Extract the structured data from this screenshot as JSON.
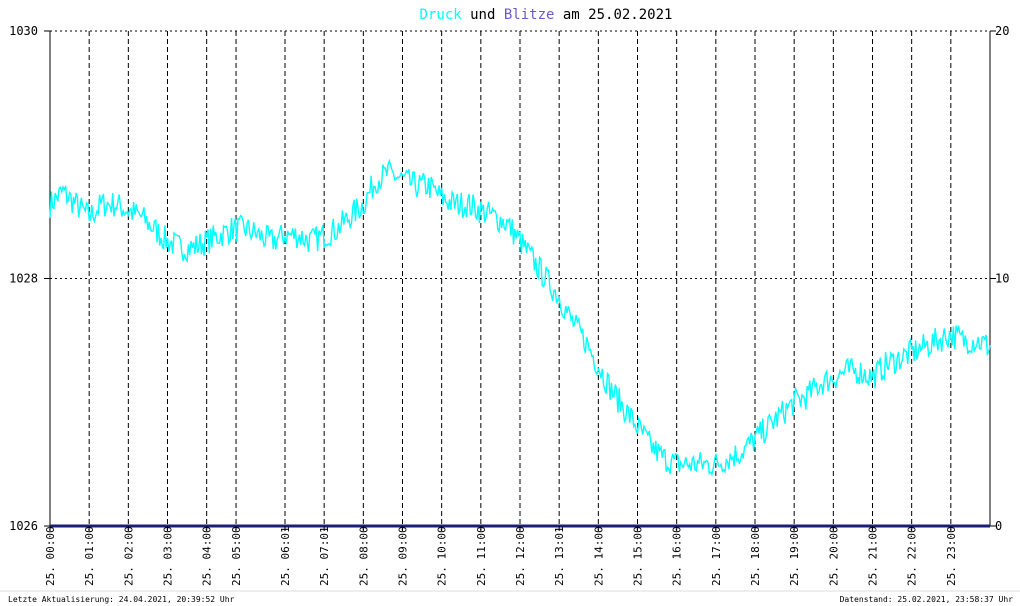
{
  "title": {
    "word1": "Druck",
    "word2": " und ",
    "word3": "Blitze",
    "word4": " am 25.02.2021"
  },
  "footer": {
    "left": "Letzte Aktualisierung: 24.04.2021, 20:39:52 Uhr",
    "right": "Datenstand: 25.02.2021, 23:58:37 Uhr"
  },
  "colors": {
    "background": "#ffffff",
    "druck": "#00ffff",
    "blitze": "#6a5acd",
    "blitze_line": "#1c1c7a",
    "grid": "#000000",
    "footer_border": "#cccccc"
  },
  "chart_data": {
    "type": "line",
    "grid": true,
    "grid_style": "dashed",
    "xlabel": "",
    "ylabel": "",
    "y_left": {
      "range": [
        1026,
        1030
      ],
      "ticks": [
        1026,
        1028,
        1030
      ],
      "tick_labels": [
        "1026",
        "1028",
        "1030"
      ]
    },
    "y_right": {
      "range": [
        0,
        20
      ],
      "ticks": [
        0,
        10,
        20
      ],
      "tick_labels": [
        "0",
        "10",
        "20"
      ]
    },
    "x_range_hours": [
      0,
      24
    ],
    "x_ticks": [
      {
        "hour": 0.0,
        "label": "25. 00:00"
      },
      {
        "hour": 1.0,
        "label": "25. 01:00"
      },
      {
        "hour": 2.0,
        "label": "25. 02:00"
      },
      {
        "hour": 3.0,
        "label": "25. 03:00"
      },
      {
        "hour": 4.0,
        "label": "25. 04:00"
      },
      {
        "hour": 4.75,
        "label": "25. 05:00"
      },
      {
        "hour": 6.0,
        "label": "25. 06:01"
      },
      {
        "hour": 7.0,
        "label": "25. 07:01"
      },
      {
        "hour": 8.0,
        "label": "25. 08:00"
      },
      {
        "hour": 9.0,
        "label": "25. 09:00"
      },
      {
        "hour": 10.0,
        "label": "25. 10:00"
      },
      {
        "hour": 11.0,
        "label": "25. 11:00"
      },
      {
        "hour": 12.0,
        "label": "25. 12:00"
      },
      {
        "hour": 13.0,
        "label": "25. 13:01"
      },
      {
        "hour": 14.0,
        "label": "25. 14:00"
      },
      {
        "hour": 15.0,
        "label": "25. 15:00"
      },
      {
        "hour": 16.0,
        "label": "25. 16:00"
      },
      {
        "hour": 17.0,
        "label": "25. 17:00"
      },
      {
        "hour": 18.0,
        "label": "25. 18:00"
      },
      {
        "hour": 19.0,
        "label": "25. 19:00"
      },
      {
        "hour": 20.0,
        "label": "25. 20:00"
      },
      {
        "hour": 21.0,
        "label": "25. 21:00"
      },
      {
        "hour": 22.0,
        "label": "25. 22:00"
      },
      {
        "hour": 23.0,
        "label": "25. 23:00"
      }
    ],
    "series": [
      {
        "name": "Druck",
        "axis": "left",
        "color": "#00ffff",
        "x": [
          0,
          0.33,
          0.66,
          1.0,
          1.33,
          1.66,
          2.0,
          2.33,
          2.66,
          3.0,
          3.33,
          3.66,
          4.0,
          4.33,
          4.66,
          5.0,
          5.33,
          5.66,
          6.0,
          6.33,
          6.66,
          7.0,
          7.33,
          7.66,
          8.0,
          8.33,
          8.66,
          9.0,
          9.33,
          9.66,
          10.0,
          10.33,
          10.66,
          11.0,
          11.33,
          11.66,
          12.0,
          12.33,
          12.66,
          13.0,
          13.33,
          13.66,
          14.0,
          14.33,
          14.66,
          15.0,
          15.33,
          15.66,
          16.0,
          16.33,
          16.66,
          17.0,
          17.33,
          17.66,
          18.0,
          18.33,
          18.66,
          19.0,
          19.33,
          19.66,
          20.0,
          20.33,
          20.66,
          21.0,
          21.33,
          21.66,
          22.0,
          22.33,
          22.66,
          23.0,
          23.33,
          23.66,
          24.0
        ],
        "y": [
          1028.6,
          1028.7,
          1028.6,
          1028.5,
          1028.6,
          1028.6,
          1028.55,
          1028.5,
          1028.4,
          1028.3,
          1028.25,
          1028.25,
          1028.3,
          1028.35,
          1028.4,
          1028.4,
          1028.35,
          1028.3,
          1028.35,
          1028.35,
          1028.3,
          1028.35,
          1028.4,
          1028.5,
          1028.6,
          1028.8,
          1028.85,
          1028.8,
          1028.75,
          1028.75,
          1028.65,
          1028.6,
          1028.6,
          1028.55,
          1028.5,
          1028.45,
          1028.3,
          1028.15,
          1028.0,
          1027.85,
          1027.65,
          1027.5,
          1027.3,
          1027.1,
          1026.95,
          1026.8,
          1026.65,
          1026.55,
          1026.5,
          1026.5,
          1026.5,
          1026.5,
          1026.55,
          1026.6,
          1026.7,
          1026.8,
          1026.9,
          1027.0,
          1027.05,
          1027.15,
          1027.2,
          1027.25,
          1027.25,
          1027.2,
          1027.3,
          1027.35,
          1027.4,
          1027.45,
          1027.5,
          1027.55,
          1027.5,
          1027.5,
          1027.45
        ]
      },
      {
        "name": "Blitze",
        "axis": "right",
        "color": "#1c1c7a",
        "x": [
          0,
          24
        ],
        "y": [
          0,
          0
        ]
      }
    ]
  }
}
